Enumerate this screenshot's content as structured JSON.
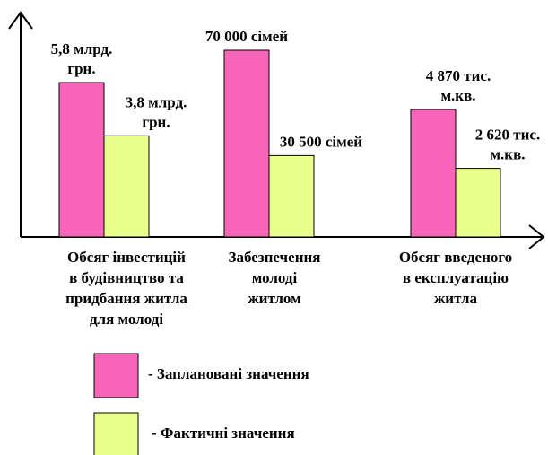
{
  "chart_data": {
    "type": "bar",
    "categories": [
      [
        "Обсяг інвестицій",
        "в будівництво та",
        "придбання житла",
        "для молоді"
      ],
      [
        "Забезпечення",
        "молоді",
        "житлом"
      ],
      [
        "Обсяг введеного",
        "в експлуатацію",
        "житла"
      ]
    ],
    "series": [
      {
        "name": "- Заплановані значення",
        "color": "#f765b8",
        "values": [
          5.8,
          70000,
          4870
        ],
        "labels": [
          [
            "5,8 млрд.",
            "грн."
          ],
          [
            "70 000 сімей"
          ],
          [
            "4 870 тис.",
            "м.кв."
          ]
        ]
      },
      {
        "name": "- Фактичні значення",
        "color": "#ebff8c",
        "values": [
          3.8,
          30500,
          2620
        ],
        "labels": [
          [
            "3,8 млрд.",
            "грн."
          ],
          [
            "30 500 сімей"
          ],
          [
            "2 620 тис.",
            "м.кв."
          ]
        ]
      }
    ],
    "legend_position": "bottom",
    "grid": false
  }
}
